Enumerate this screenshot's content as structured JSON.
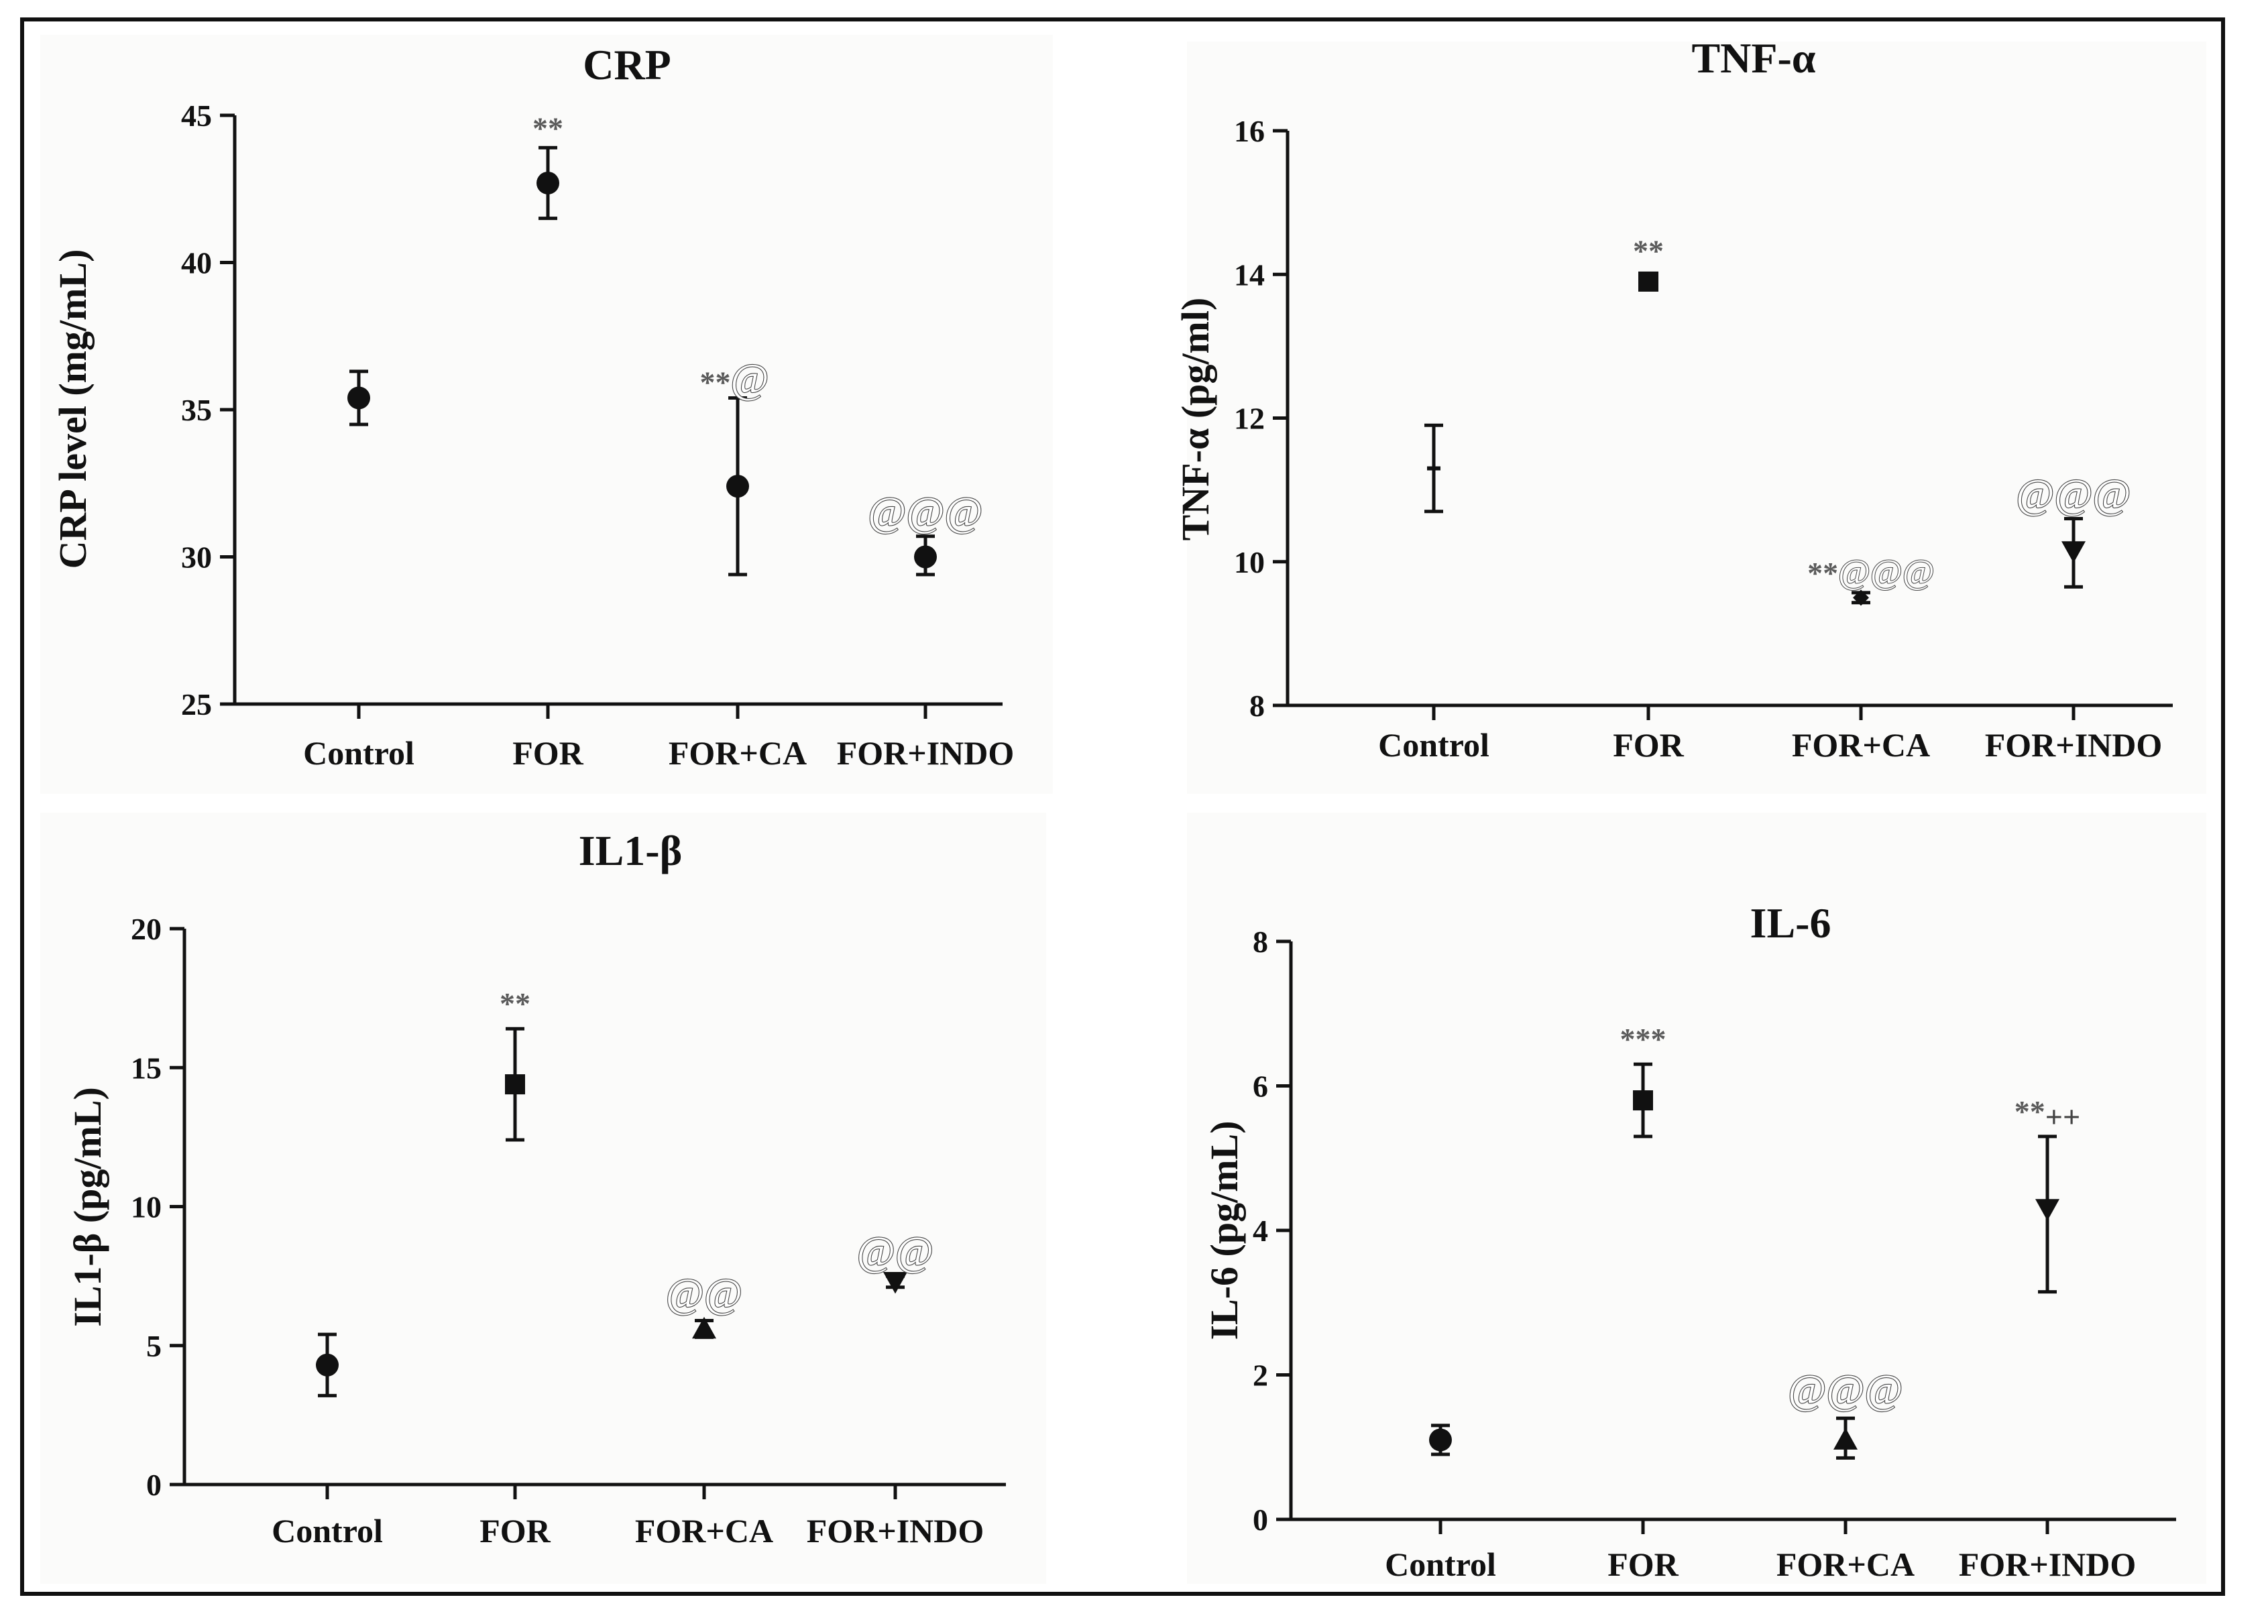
{
  "chart_data": [
    {
      "type": "scatter",
      "title": "CRP",
      "ylabel": "CRP level (mg/mL)",
      "xlabel": "",
      "categories": [
        "Control",
        "FOR",
        "FOR+CA",
        "FOR+INDO"
      ],
      "ylim": [
        25,
        45
      ],
      "yticks": [
        25,
        30,
        35,
        40,
        45
      ],
      "markers": [
        "circle",
        "circle",
        "circle",
        "circle"
      ],
      "series": [
        {
          "name": "mean",
          "values": [
            35.4,
            42.7,
            32.4,
            30.0
          ]
        }
      ],
      "error_low": [
        34.5,
        41.5,
        29.4,
        29.4
      ],
      "error_high": [
        36.3,
        43.9,
        35.4,
        30.7
      ],
      "annotations": [
        "",
        "**",
        "**@",
        "@@@"
      ]
    },
    {
      "type": "scatter",
      "title": "TNF-α",
      "ylabel": "TNF-α (pg/ml)",
      "xlabel": "",
      "categories": [
        "Control",
        "FOR",
        "FOR+CA",
        "FOR+INDO"
      ],
      "ylim": [
        8,
        16
      ],
      "yticks": [
        8,
        10,
        12,
        14,
        16
      ],
      "markers": [
        "dash",
        "square",
        "diamond",
        "triangle-down"
      ],
      "series": [
        {
          "name": "mean",
          "values": [
            11.3,
            13.9,
            9.5,
            10.15
          ]
        }
      ],
      "error_low": [
        10.7,
        13.8,
        9.43,
        9.65
      ],
      "error_high": [
        11.9,
        14.0,
        9.57,
        10.6
      ],
      "annotations": [
        "",
        "**",
        "**@@@",
        "@@@"
      ]
    },
    {
      "type": "scatter",
      "title": "IL1-β",
      "ylabel": "IL1-β (pg/mL)",
      "xlabel": "",
      "categories": [
        "Control",
        "FOR",
        "FOR+CA",
        "FOR+INDO"
      ],
      "ylim": [
        0,
        20
      ],
      "yticks": [
        0,
        5,
        10,
        15,
        20
      ],
      "markers": [
        "circle",
        "square",
        "triangle-up",
        "triangle-down"
      ],
      "series": [
        {
          "name": "mean",
          "values": [
            4.3,
            14.4,
            5.6,
            7.3
          ]
        }
      ],
      "error_low": [
        3.2,
        12.4,
        5.3,
        7.1
      ],
      "error_high": [
        5.4,
        16.4,
        5.9,
        7.5
      ],
      "annotations": [
        "",
        "**",
        "@@",
        "@@"
      ]
    },
    {
      "type": "scatter",
      "title": "IL-6",
      "ylabel": "IL-6 (pg/mL)",
      "xlabel": "",
      "categories": [
        "Control",
        "FOR",
        "FOR+CA",
        "FOR+INDO"
      ],
      "ylim": [
        0,
        8
      ],
      "yticks": [
        0,
        2,
        4,
        6,
        8
      ],
      "markers": [
        "circle",
        "square",
        "triangle-up",
        "triangle-down"
      ],
      "series": [
        {
          "name": "mean",
          "values": [
            1.1,
            5.8,
            1.1,
            4.3
          ]
        }
      ],
      "error_low": [
        0.9,
        5.3,
        0.85,
        3.15
      ],
      "error_high": [
        1.3,
        6.3,
        1.4,
        5.3
      ],
      "annotations": [
        "",
        "***",
        "@@@",
        "**++"
      ]
    }
  ]
}
